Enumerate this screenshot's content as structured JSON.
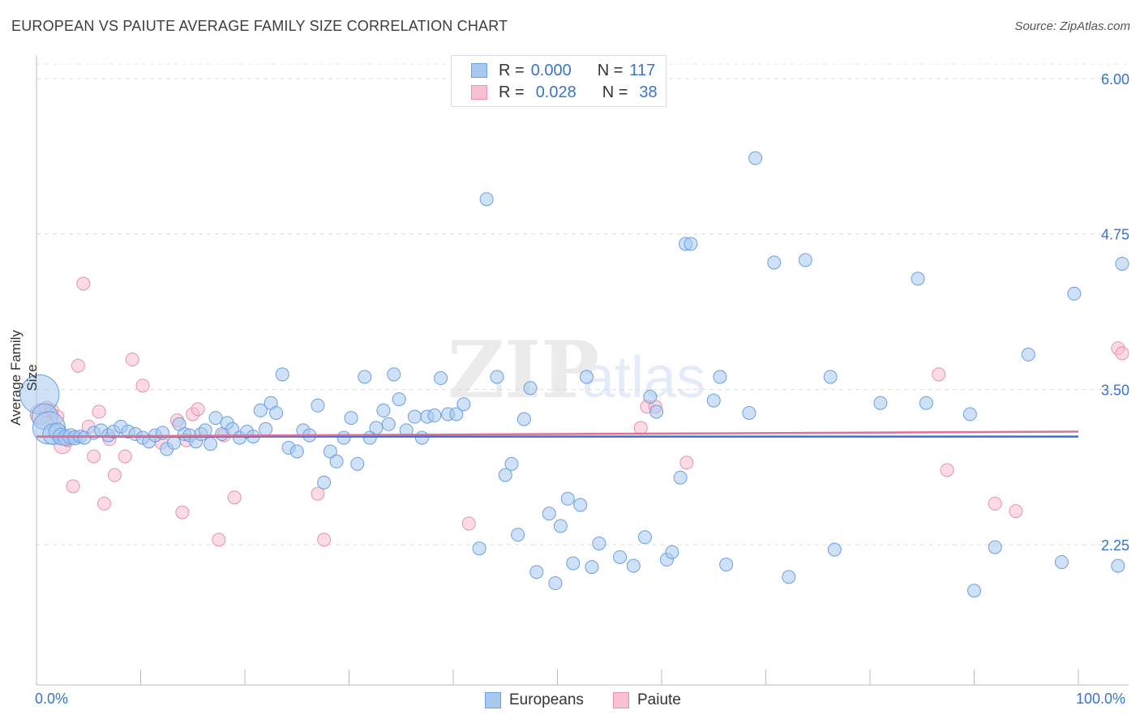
{
  "title": "EUROPEAN VS PAIUTE AVERAGE FAMILY SIZE CORRELATION CHART",
  "source": "Source: ZipAtlas.com",
  "watermark": {
    "zip": "ZIP",
    "atlas": "atlas"
  },
  "legend": {
    "rows": [
      {
        "r_label": "R =",
        "r_value": "0.000",
        "n_label": "N =",
        "n_value": "117",
        "color": "#a8c8f0",
        "border": "#6a9fe0"
      },
      {
        "r_label": "R =",
        "r_value": "0.028",
        "n_label": "N =",
        "n_value": "38",
        "color": "#f8c0d0",
        "border": "#e890ac"
      }
    ]
  },
  "chart_data": {
    "type": "scatter",
    "xlabel": "",
    "ylabel": "Average Family Size",
    "x_tick_labels": {
      "min": "0.0%",
      "max": "100.0%"
    },
    "y_tick_labels": [
      "6.00",
      "4.75",
      "3.50",
      "2.25"
    ],
    "xlim": [
      0,
      100
    ],
    "ylim": [
      1.0,
      6.1
    ],
    "y_gridlines": [
      6.0,
      4.75,
      3.5,
      2.25
    ],
    "grid": "horizontal dashed",
    "legend_position": "top-center",
    "colors": {
      "Europeans": {
        "fill": "#a8c8f0",
        "stroke": "#6a9fe0",
        "line": "#3a6fd8"
      },
      "Paiute": {
        "fill": "#f8c0d0",
        "stroke": "#e890ac",
        "line": "#e07095"
      }
    },
    "series": [
      {
        "name": "Europeans",
        "trend": {
          "x": [
            0,
            100
          ],
          "y": [
            3.12,
            3.12
          ]
        },
        "points": [
          [
            0.3,
            3.46,
            3
          ],
          [
            0.8,
            3.28,
            2
          ],
          [
            1.2,
            3.19,
            2.5
          ],
          [
            1.6,
            3.14,
            1.6
          ],
          [
            2.0,
            3.16,
            1.3
          ],
          [
            2.4,
            3.12,
            1.3
          ],
          [
            2.8,
            3.11,
            1.2
          ],
          [
            3.3,
            3.12,
            1.2
          ],
          [
            3.7,
            3.11,
            1.1
          ],
          [
            4.2,
            3.12,
            1
          ],
          [
            4.6,
            3.11,
            1
          ],
          [
            5.5,
            3.15,
            1
          ],
          [
            6.2,
            3.17,
            1
          ],
          [
            6.9,
            3.13,
            1
          ],
          [
            7.4,
            3.16,
            1
          ],
          [
            8.1,
            3.2,
            1
          ],
          [
            8.8,
            3.16,
            1
          ],
          [
            9.5,
            3.14,
            1
          ],
          [
            10.2,
            3.11,
            1
          ],
          [
            10.8,
            3.08,
            1
          ],
          [
            11.4,
            3.13,
            1
          ],
          [
            12.1,
            3.15,
            1
          ],
          [
            12.5,
            3.02,
            1
          ],
          [
            13.2,
            3.07,
            1
          ],
          [
            13.7,
            3.22,
            1
          ],
          [
            14.2,
            3.14,
            1
          ],
          [
            14.7,
            3.13,
            1
          ],
          [
            15.3,
            3.08,
            1
          ],
          [
            15.8,
            3.14,
            1
          ],
          [
            16.2,
            3.17,
            1
          ],
          [
            16.7,
            3.06,
            1
          ],
          [
            17.2,
            3.27,
            1
          ],
          [
            17.8,
            3.14,
            1
          ],
          [
            18.3,
            3.23,
            1
          ],
          [
            18.8,
            3.18,
            1
          ],
          [
            19.5,
            3.11,
            1
          ],
          [
            20.2,
            3.16,
            1
          ],
          [
            20.8,
            3.12,
            1
          ],
          [
            21.5,
            3.33,
            1
          ],
          [
            22.0,
            3.18,
            1
          ],
          [
            22.5,
            3.39,
            1
          ],
          [
            23.0,
            3.31,
            1
          ],
          [
            23.6,
            3.62,
            1
          ],
          [
            24.2,
            3.03,
            1
          ],
          [
            25.0,
            3.0,
            1
          ],
          [
            25.6,
            3.17,
            1
          ],
          [
            26.2,
            3.13,
            1
          ],
          [
            27.0,
            3.37,
            1
          ],
          [
            27.6,
            2.75,
            1
          ],
          [
            28.2,
            3.0,
            1
          ],
          [
            28.8,
            2.92,
            1
          ],
          [
            29.5,
            3.11,
            1
          ],
          [
            30.2,
            3.27,
            1
          ],
          [
            30.8,
            2.9,
            1
          ],
          [
            31.5,
            3.6,
            1
          ],
          [
            32.0,
            3.11,
            1
          ],
          [
            32.6,
            3.19,
            1
          ],
          [
            33.3,
            3.33,
            1
          ],
          [
            33.8,
            3.22,
            1
          ],
          [
            34.3,
            3.62,
            1
          ],
          [
            34.8,
            3.42,
            1
          ],
          [
            35.5,
            3.17,
            1
          ],
          [
            36.3,
            3.28,
            1
          ],
          [
            37.0,
            3.11,
            1
          ],
          [
            37.5,
            3.28,
            1
          ],
          [
            38.2,
            3.29,
            1
          ],
          [
            38.8,
            3.59,
            1
          ],
          [
            39.5,
            3.3,
            1
          ],
          [
            40.3,
            3.3,
            1
          ],
          [
            41.0,
            3.38,
            1
          ],
          [
            42.5,
            2.22,
            1
          ],
          [
            43.2,
            5.03,
            1
          ],
          [
            44.2,
            3.6,
            1
          ],
          [
            45.0,
            2.81,
            1
          ],
          [
            45.6,
            2.9,
            1
          ],
          [
            46.2,
            2.33,
            1
          ],
          [
            46.8,
            3.26,
            1
          ],
          [
            47.4,
            3.51,
            1
          ],
          [
            48.0,
            2.03,
            1
          ],
          [
            49.2,
            2.5,
            1
          ],
          [
            49.8,
            1.94,
            1
          ],
          [
            50.3,
            2.4,
            1
          ],
          [
            51.0,
            2.62,
            1
          ],
          [
            51.5,
            2.1,
            1
          ],
          [
            52.2,
            2.57,
            1
          ],
          [
            52.8,
            3.6,
            1
          ],
          [
            53.3,
            2.07,
            1
          ],
          [
            54.0,
            2.26,
            1
          ],
          [
            56.0,
            2.15,
            1
          ],
          [
            57.3,
            2.08,
            1
          ],
          [
            58.4,
            2.31,
            1
          ],
          [
            58.9,
            3.44,
            1
          ],
          [
            59.5,
            3.32,
            1
          ],
          [
            60.5,
            2.13,
            1
          ],
          [
            61.0,
            2.19,
            1
          ],
          [
            61.8,
            2.79,
            1
          ],
          [
            62.3,
            4.67,
            1
          ],
          [
            62.8,
            4.67,
            1
          ],
          [
            65.0,
            3.41,
            1
          ],
          [
            65.6,
            3.6,
            1
          ],
          [
            66.2,
            2.09,
            1
          ],
          [
            68.4,
            3.31,
            1
          ],
          [
            69.0,
            5.36,
            1
          ],
          [
            70.8,
            4.52,
            1
          ],
          [
            72.2,
            1.99,
            1
          ],
          [
            73.8,
            4.54,
            1
          ],
          [
            76.2,
            3.6,
            1
          ],
          [
            76.6,
            2.21,
            1
          ],
          [
            81.0,
            3.39,
            1
          ],
          [
            84.6,
            4.39,
            1
          ],
          [
            85.4,
            3.39,
            1
          ],
          [
            89.6,
            3.3,
            1
          ],
          [
            90.0,
            1.88,
            1
          ],
          [
            92.0,
            2.23,
            1
          ],
          [
            95.2,
            3.78,
            1
          ],
          [
            98.4,
            2.11,
            1
          ],
          [
            99.6,
            4.27,
            1
          ],
          [
            103.8,
            2.08,
            1
          ],
          [
            104.2,
            4.51,
            1
          ]
        ]
      },
      {
        "name": "Paiute",
        "trend": {
          "x": [
            0,
            100
          ],
          "y": [
            3.12,
            3.16
          ]
        },
        "points": [
          [
            0.4,
            3.3,
            1.6
          ],
          [
            1.0,
            3.34,
            1.2
          ],
          [
            1.5,
            3.33,
            1
          ],
          [
            2.0,
            3.28,
            1
          ],
          [
            2.5,
            3.05,
            1.3
          ],
          [
            3.0,
            3.09,
            1
          ],
          [
            3.5,
            2.72,
            1
          ],
          [
            4.0,
            3.69,
            1
          ],
          [
            4.5,
            4.35,
            1
          ],
          [
            5.0,
            3.2,
            1
          ],
          [
            5.5,
            2.96,
            1
          ],
          [
            6.0,
            3.32,
            1
          ],
          [
            6.5,
            2.58,
            1
          ],
          [
            7.0,
            3.1,
            1
          ],
          [
            7.5,
            2.81,
            1
          ],
          [
            8.5,
            2.96,
            1
          ],
          [
            9.2,
            3.74,
            1
          ],
          [
            10.2,
            3.53,
            1
          ],
          [
            12.0,
            3.07,
            1
          ],
          [
            13.5,
            3.25,
            1
          ],
          [
            14.0,
            2.51,
            1
          ],
          [
            14.4,
            3.09,
            1
          ],
          [
            15.0,
            3.3,
            1
          ],
          [
            15.5,
            3.34,
            1
          ],
          [
            17.5,
            2.29,
            1
          ],
          [
            18.0,
            3.13,
            1
          ],
          [
            19.0,
            2.63,
            1
          ],
          [
            27.0,
            2.66,
            1
          ],
          [
            27.6,
            2.29,
            1
          ],
          [
            41.5,
            2.42,
            1
          ],
          [
            58.0,
            3.19,
            1
          ],
          [
            58.6,
            3.36,
            1
          ],
          [
            59.4,
            3.36,
            1
          ],
          [
            62.4,
            2.91,
            1
          ],
          [
            86.6,
            3.62,
            1
          ],
          [
            87.4,
            2.85,
            1
          ],
          [
            92.0,
            2.58,
            1
          ],
          [
            94.0,
            2.52,
            1
          ],
          [
            103.8,
            3.83,
            1
          ],
          [
            104.2,
            3.79,
            1
          ]
        ]
      }
    ]
  }
}
